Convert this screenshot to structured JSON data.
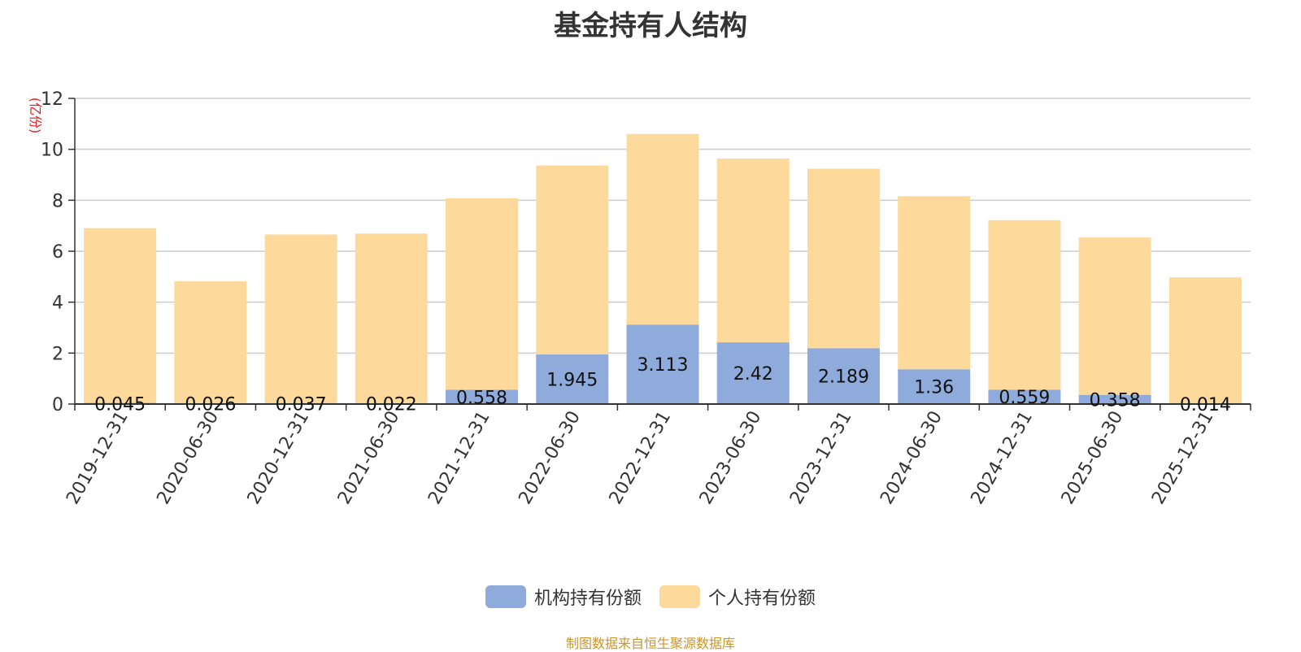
{
  "chart_data": {
    "type": "bar",
    "stacked": true,
    "title": "基金持有人结构",
    "ylabel": "(亿份)",
    "xlabel": "",
    "ylim": [
      0,
      12
    ],
    "yticks": [
      "0",
      "2",
      "4",
      "6",
      "8",
      "10",
      "12"
    ],
    "grid": true,
    "legend_position": "bottom",
    "categories": [
      "2019-12-31",
      "2020-06-30",
      "2020-12-31",
      "2021-06-30",
      "2021-12-31",
      "2022-06-30",
      "2022-12-31",
      "2023-06-30",
      "2023-12-31",
      "2024-06-30",
      "2024-12-31",
      "2025-06-30",
      "2025-12-31"
    ],
    "series": [
      {
        "name": "机构持有份额",
        "color": "#8eabdb",
        "values": [
          0.045,
          0.026,
          0.037,
          0.022,
          0.558,
          1.945,
          3.113,
          2.42,
          2.189,
          1.36,
          0.559,
          0.358,
          0.014
        ],
        "labels": [
          "0.045",
          "0.026",
          "0.037",
          "0.022",
          "0.558",
          "1.945",
          "3.113",
          "2.42",
          "2.189",
          "1.36",
          "0.559",
          "0.358",
          "0.014"
        ]
      },
      {
        "name": "个人持有份额",
        "color": "#fdd99b",
        "values": [
          6.86,
          4.79,
          6.62,
          6.67,
          7.52,
          7.42,
          7.49,
          7.22,
          7.05,
          6.8,
          6.66,
          6.18,
          4.96
        ]
      }
    ]
  },
  "source_note": "制图数据来自恒生聚源数据库"
}
